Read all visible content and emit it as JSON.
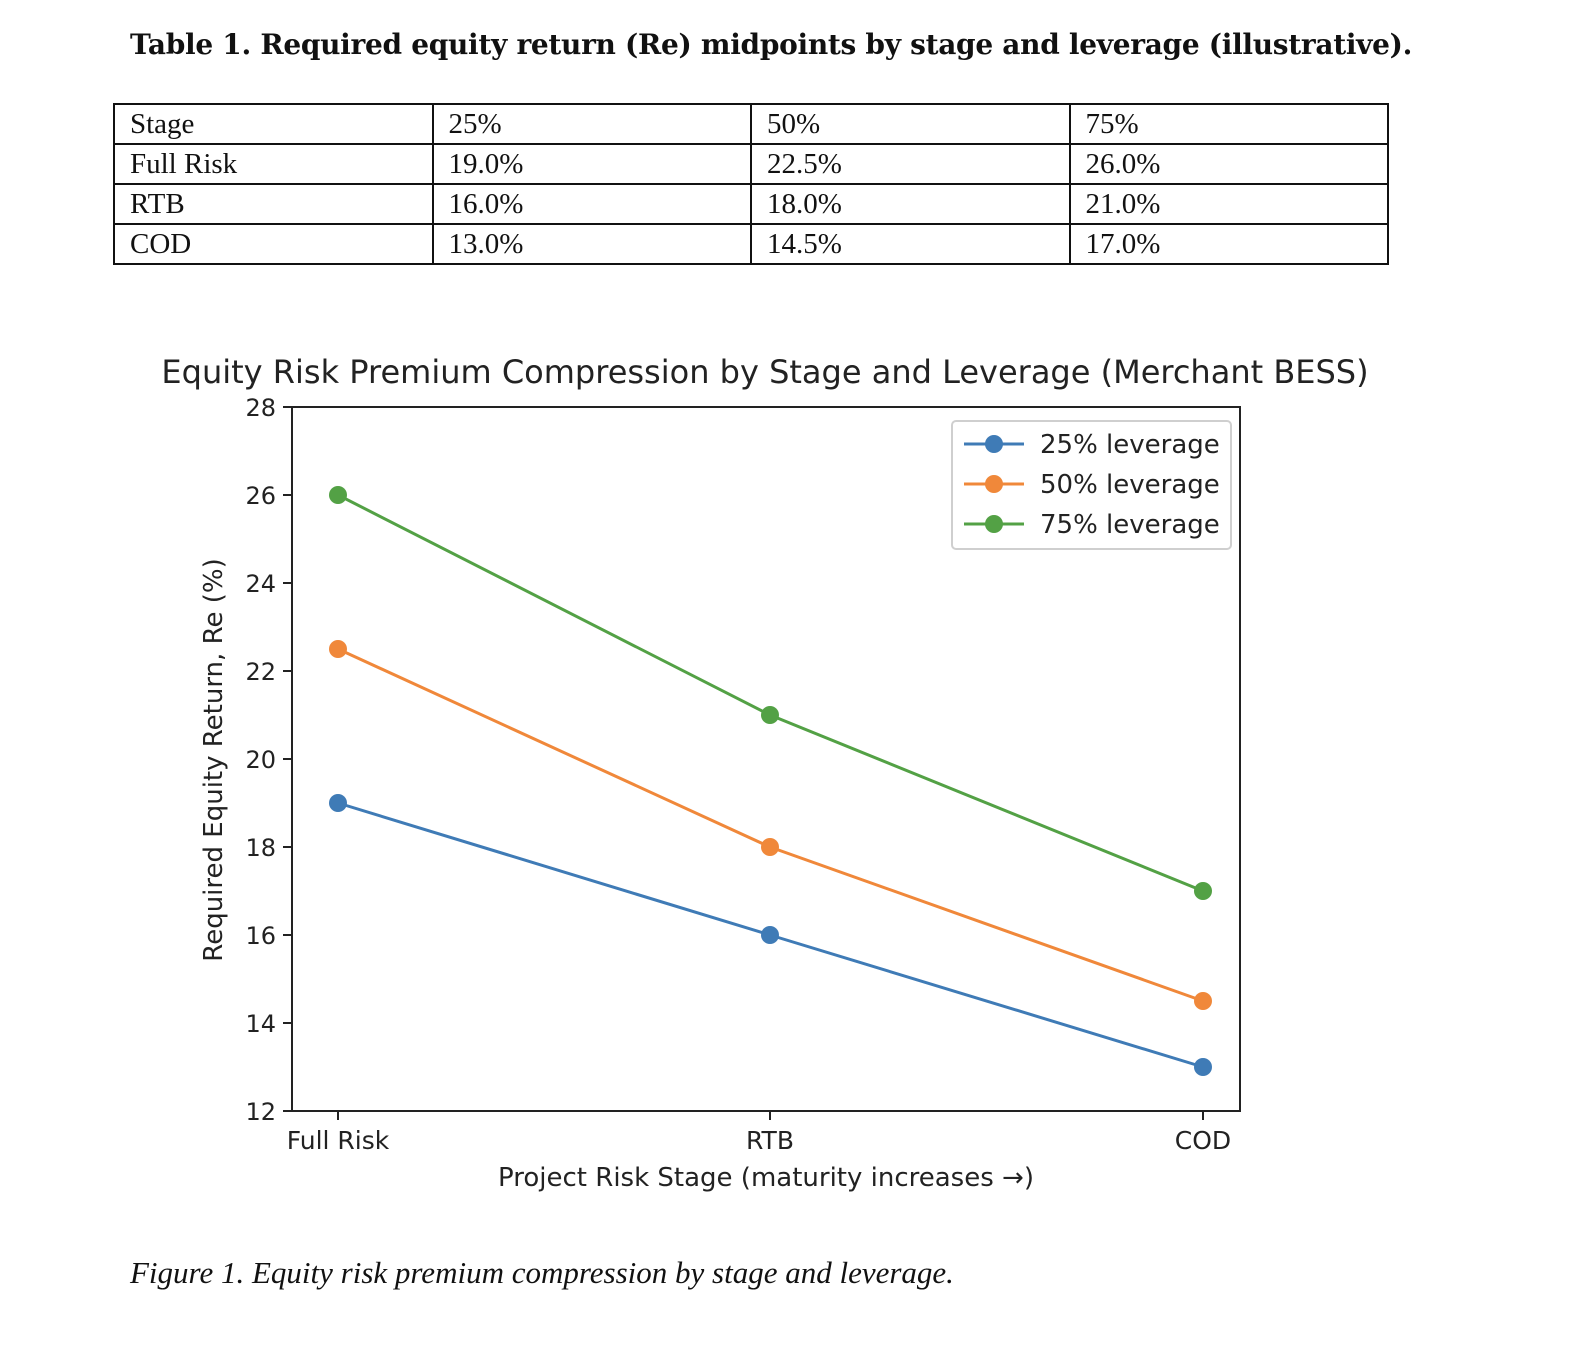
{
  "table": {
    "caption": "Table 1. Required equity return (Re) midpoints by stage and leverage (illustrative).",
    "header": [
      "Stage",
      "25%",
      "50%",
      "75%"
    ],
    "rows": [
      [
        "Full Risk",
        "19.0%",
        "22.5%",
        "26.0%"
      ],
      [
        "RTB",
        "16.0%",
        "18.0%",
        "21.0%"
      ],
      [
        "COD",
        "13.0%",
        "14.5%",
        "17.0%"
      ]
    ]
  },
  "chart_data": {
    "type": "line",
    "title": "Equity Risk Premium Compression by Stage and Leverage (Merchant BESS)",
    "xlabel": "Project Risk Stage (maturity increases →)",
    "ylabel": "Required Equity Return, Re (%)",
    "categories": [
      "Full Risk",
      "RTB",
      "COD"
    ],
    "ylim": [
      12,
      28
    ],
    "yticks": [
      12,
      14,
      16,
      18,
      20,
      22,
      24,
      26,
      28
    ],
    "legend_position": "top-right",
    "series": [
      {
        "name": "25% leverage",
        "color": "#3f7bb6",
        "values": [
          19.0,
          16.0,
          13.0
        ]
      },
      {
        "name": "50% leverage",
        "color": "#f0883a",
        "values": [
          22.5,
          18.0,
          14.5
        ]
      },
      {
        "name": "75% leverage",
        "color": "#53a145",
        "values": [
          26.0,
          21.0,
          17.0
        ]
      }
    ]
  },
  "figure": {
    "caption": "Figure 1. Equity risk premium compression by stage and leverage."
  }
}
